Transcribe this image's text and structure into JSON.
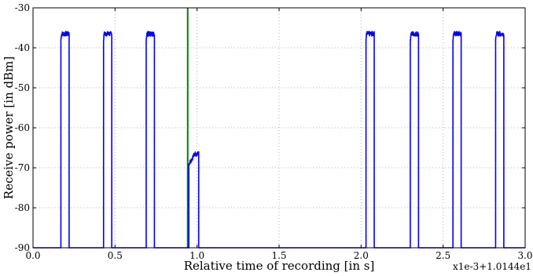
{
  "chart_data": {
    "type": "line",
    "xlabel": "Relative time of recording [in s]",
    "ylabel": "Receive power [in dBm]",
    "x_offset_label": "x1e-3+1.0144e1",
    "xlim": [
      0.0,
      3.0
    ],
    "ylim": [
      -90,
      -30
    ],
    "xticks": [
      0.0,
      0.5,
      1.0,
      1.5,
      2.0,
      2.5,
      3.0
    ],
    "xtick_labels": [
      "0.0",
      "0.5",
      "1.0",
      "1.5",
      "2.0",
      "2.5",
      "3.0"
    ],
    "yticks": [
      -90,
      -80,
      -70,
      -60,
      -50,
      -40,
      -30
    ],
    "ytick_labels": [
      "-90",
      "-80",
      "-70",
      "-60",
      "-50",
      "-40",
      "-30"
    ],
    "grid": true,
    "series": [
      {
        "color": "#0000ff",
        "baseline": -90,
        "pulses": [
          {
            "start": 0.17,
            "end": 0.22,
            "level": -36.5
          },
          {
            "start": 0.43,
            "end": 0.48,
            "level": -36.5
          },
          {
            "start": 0.69,
            "end": 0.74,
            "level": -36.5
          },
          {
            "start": 0.95,
            "end": 1.01,
            "level": -66.5,
            "rise_from": -69.0
          },
          {
            "start": 2.03,
            "end": 2.08,
            "level": -36.5
          },
          {
            "start": 2.3,
            "end": 2.35,
            "level": -36.5
          },
          {
            "start": 2.56,
            "end": 2.61,
            "level": -36.5
          },
          {
            "start": 2.82,
            "end": 2.87,
            "level": -36.5
          }
        ]
      }
    ],
    "vertical_markers": [
      {
        "x": 0.943,
        "color": "#008000"
      }
    ]
  }
}
